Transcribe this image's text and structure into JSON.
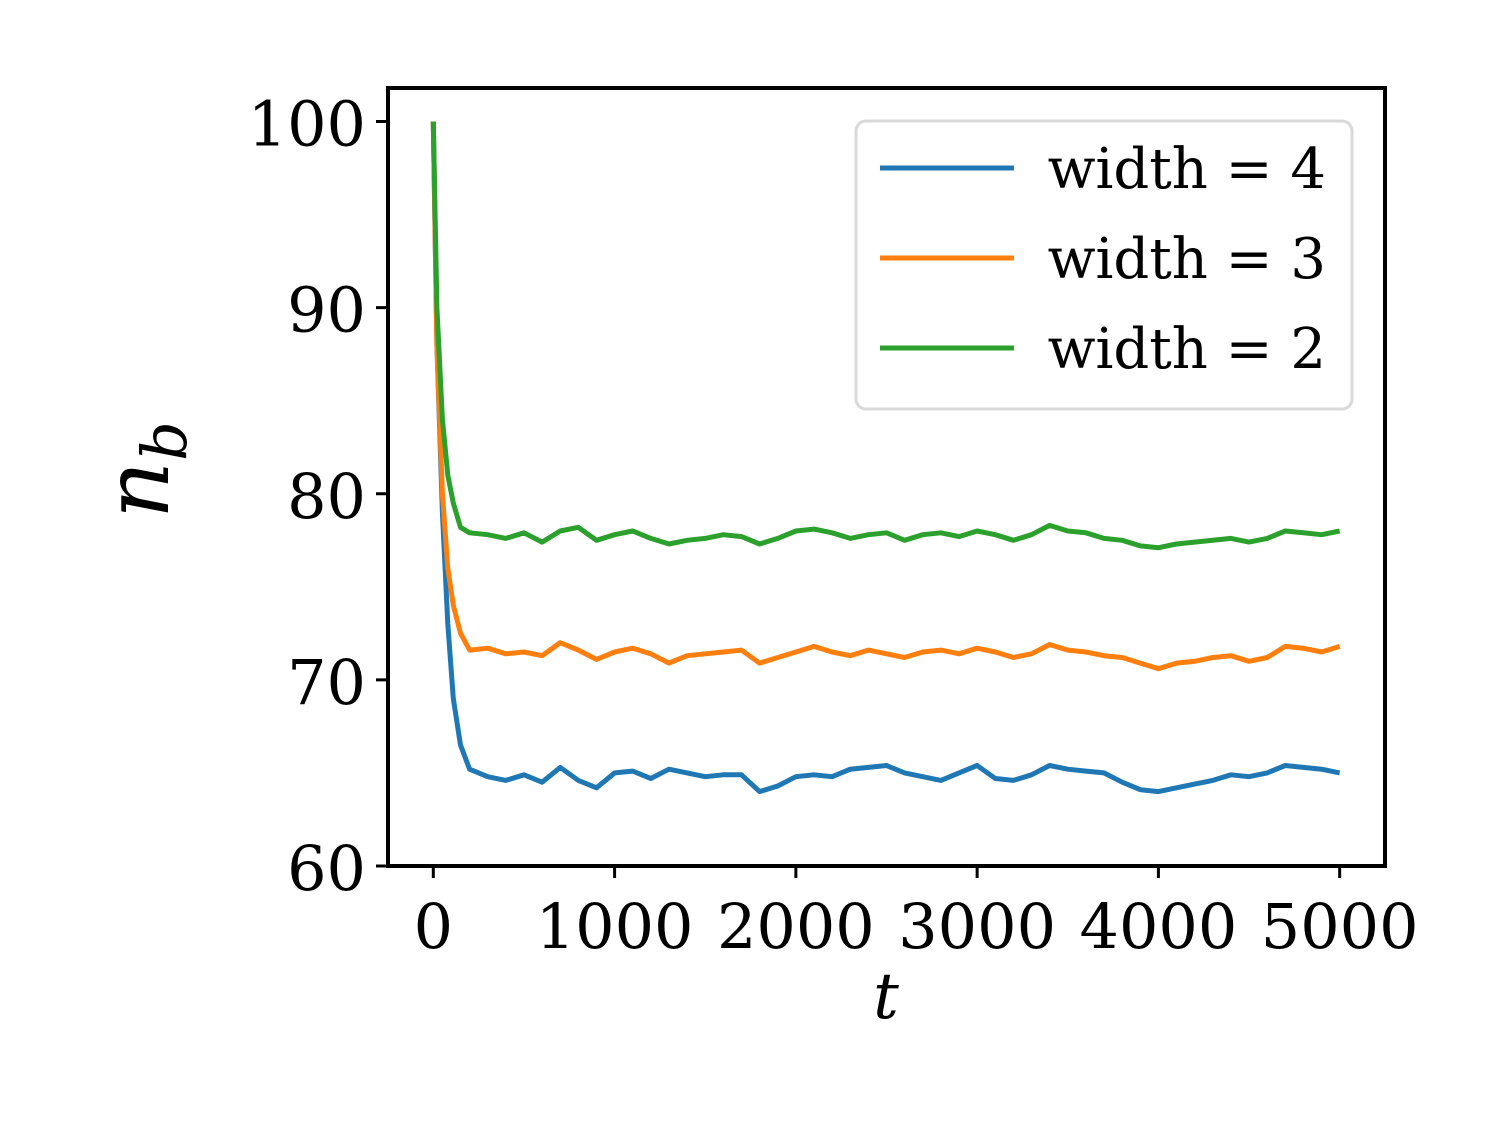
{
  "chart_data": {
    "type": "line",
    "title": "",
    "xlabel": "t",
    "ylabel": "n_b",
    "ylabel_main": "n",
    "ylabel_sub": "b",
    "xlim": [
      -250,
      5250
    ],
    "ylim": [
      60,
      101.8
    ],
    "xticks": [
      0,
      1000,
      2000,
      3000,
      4000,
      5000
    ],
    "xtick_labels": [
      "0",
      "1000",
      "2000",
      "3000",
      "4000",
      "5000"
    ],
    "yticks": [
      60,
      70,
      80,
      90,
      100
    ],
    "ytick_labels": [
      "60",
      "70",
      "80",
      "90",
      "100"
    ],
    "grid": false,
    "legend_position": "top-right",
    "x": [
      0,
      20,
      50,
      80,
      110,
      150,
      200,
      300,
      400,
      500,
      600,
      700,
      800,
      900,
      1000,
      1100,
      1200,
      1300,
      1400,
      1500,
      1600,
      1700,
      1800,
      1900,
      2000,
      2100,
      2200,
      2300,
      2400,
      2500,
      2600,
      2700,
      2800,
      2900,
      3000,
      3100,
      3200,
      3300,
      3400,
      3500,
      3600,
      3700,
      3800,
      3900,
      4000,
      4100,
      4200,
      4300,
      4400,
      4500,
      4600,
      4700,
      4800,
      4900,
      5000
    ],
    "series": [
      {
        "name": "width = 4",
        "color": "#1f77b4",
        "values": [
          100,
          88,
          79,
          73,
          69,
          66.5,
          65.2,
          64.8,
          64.6,
          64.9,
          64.5,
          65.3,
          64.6,
          64.2,
          65.0,
          65.1,
          64.7,
          65.2,
          65.0,
          64.8,
          64.9,
          64.9,
          64.0,
          64.3,
          64.8,
          64.9,
          64.8,
          65.2,
          65.3,
          65.4,
          65.0,
          64.8,
          64.6,
          65.0,
          65.4,
          64.7,
          64.6,
          64.9,
          65.4,
          65.2,
          65.1,
          65.0,
          64.5,
          64.1,
          64.0,
          64.2,
          64.4,
          64.6,
          64.9,
          64.8,
          65.0,
          65.4,
          65.3,
          65.2,
          65.0
        ]
      },
      {
        "name": "width = 3",
        "color": "#ff7f0e",
        "values": [
          100,
          88,
          80,
          76,
          74,
          72.5,
          71.6,
          71.7,
          71.4,
          71.5,
          71.3,
          72.0,
          71.6,
          71.1,
          71.5,
          71.7,
          71.4,
          70.9,
          71.3,
          71.4,
          71.5,
          71.6,
          70.9,
          71.2,
          71.5,
          71.8,
          71.5,
          71.3,
          71.6,
          71.4,
          71.2,
          71.5,
          71.6,
          71.4,
          71.7,
          71.5,
          71.2,
          71.4,
          71.9,
          71.6,
          71.5,
          71.3,
          71.2,
          70.9,
          70.6,
          70.9,
          71.0,
          71.2,
          71.3,
          71.0,
          71.2,
          71.8,
          71.7,
          71.5,
          71.8
        ]
      },
      {
        "name": "width = 2",
        "color": "#2ca02c",
        "values": [
          100,
          90,
          84,
          81,
          79.5,
          78.2,
          77.9,
          77.8,
          77.6,
          77.9,
          77.4,
          78.0,
          78.2,
          77.5,
          77.8,
          78.0,
          77.6,
          77.3,
          77.5,
          77.6,
          77.8,
          77.7,
          77.3,
          77.6,
          78.0,
          78.1,
          77.9,
          77.6,
          77.8,
          77.9,
          77.5,
          77.8,
          77.9,
          77.7,
          78.0,
          77.8,
          77.5,
          77.8,
          78.3,
          78.0,
          77.9,
          77.6,
          77.5,
          77.2,
          77.1,
          77.3,
          77.4,
          77.5,
          77.6,
          77.4,
          77.6,
          78.0,
          77.9,
          77.8,
          78.0
        ]
      }
    ]
  }
}
